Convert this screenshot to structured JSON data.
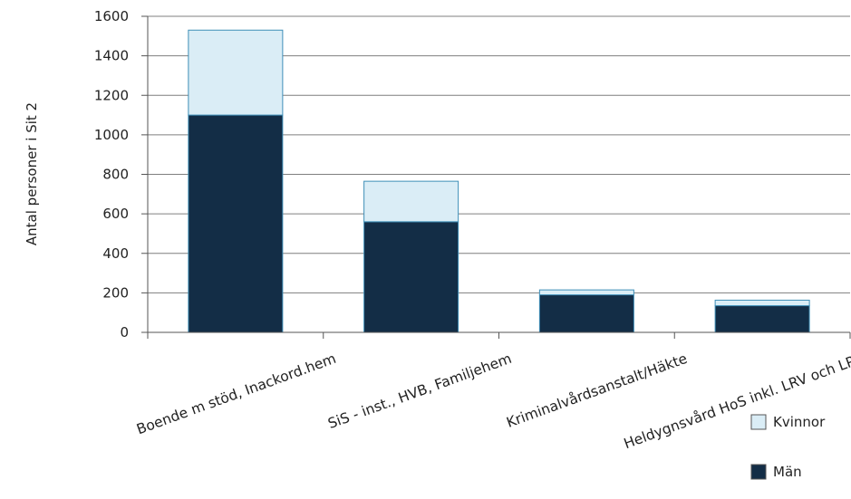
{
  "chart_data": {
    "type": "bar",
    "stacked": true,
    "categories": [
      "Boende m stöd, Inackord.hem",
      "SiS - inst., HVB, Familjehem",
      "Kriminalvårdsanstalt/Häkte",
      "Heldygnsvård HoS inkl. LRV och LPT"
    ],
    "series": [
      {
        "name": "Män",
        "values": [
          1100,
          560,
          190,
          135
        ],
        "color": "#132d46"
      },
      {
        "name": "Kvinnor",
        "values": [
          430,
          205,
          25,
          28
        ],
        "color": "#daedf6"
      }
    ],
    "ylabel": "Antal personer i Sit 2",
    "xlabel": "",
    "ylim": [
      0,
      1600
    ],
    "yticks": [
      "0",
      "200",
      "400",
      "600",
      "800",
      "1000",
      "1200",
      "1400",
      "1600"
    ],
    "grid": true,
    "legend_position": "bottom-right",
    "bar_stroke": "#3f8fb8"
  }
}
